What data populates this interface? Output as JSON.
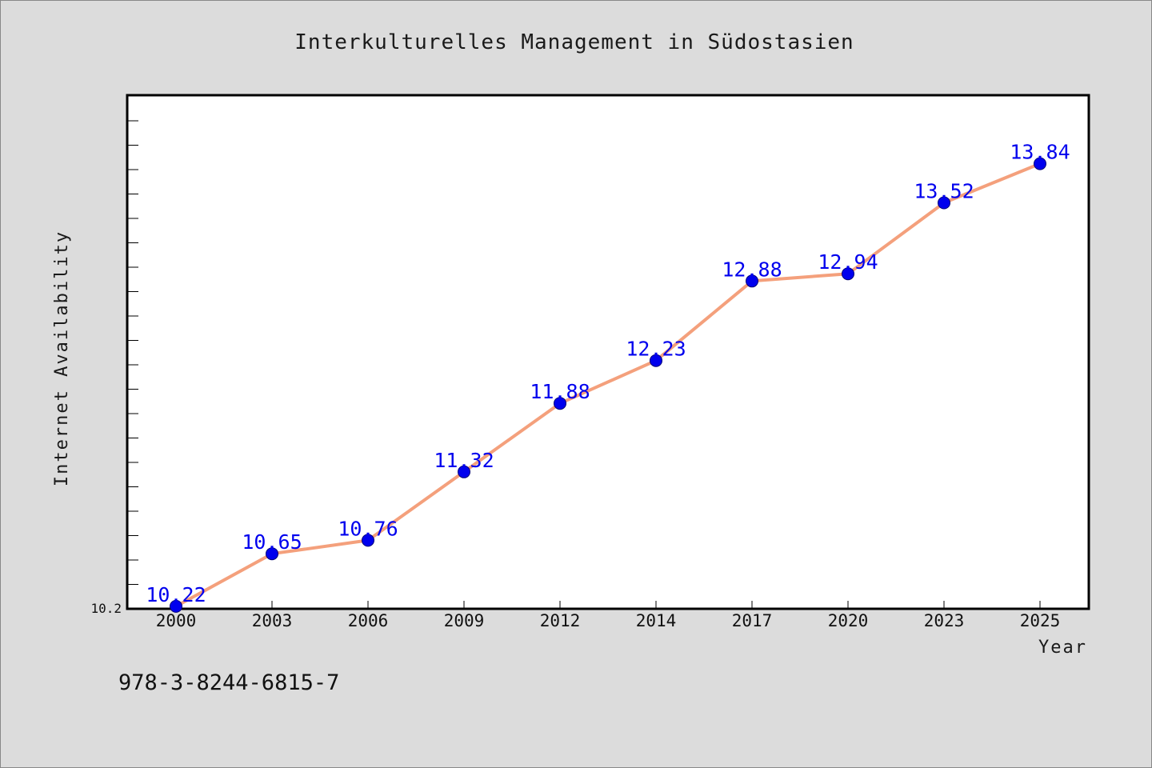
{
  "chart_data": {
    "type": "line",
    "title": "Interkulturelles Management in Südostasien",
    "xlabel": "Year",
    "ylabel": "Internet Availability",
    "categories": [
      "2000",
      "2003",
      "2006",
      "2009",
      "2012",
      "2014",
      "2017",
      "2020",
      "2023",
      "2025"
    ],
    "series": [
      {
        "values": [
          10.22,
          10.65,
          10.76,
          11.32,
          11.88,
          12.23,
          12.88,
          12.94,
          13.52,
          13.84
        ]
      }
    ],
    "ylim": [
      10.2,
      14.4
    ],
    "y_tick_labels": [
      "10.2"
    ],
    "grid": false,
    "data_labels": true,
    "colors": {
      "line": "#f4a07c",
      "marker": "#0000ee",
      "data_label": "#0000ee",
      "plot_background": "#ffffff",
      "page_background": "#dcdcdc"
    }
  },
  "footer": {
    "isbn": "978-3-8244-6815-7"
  }
}
